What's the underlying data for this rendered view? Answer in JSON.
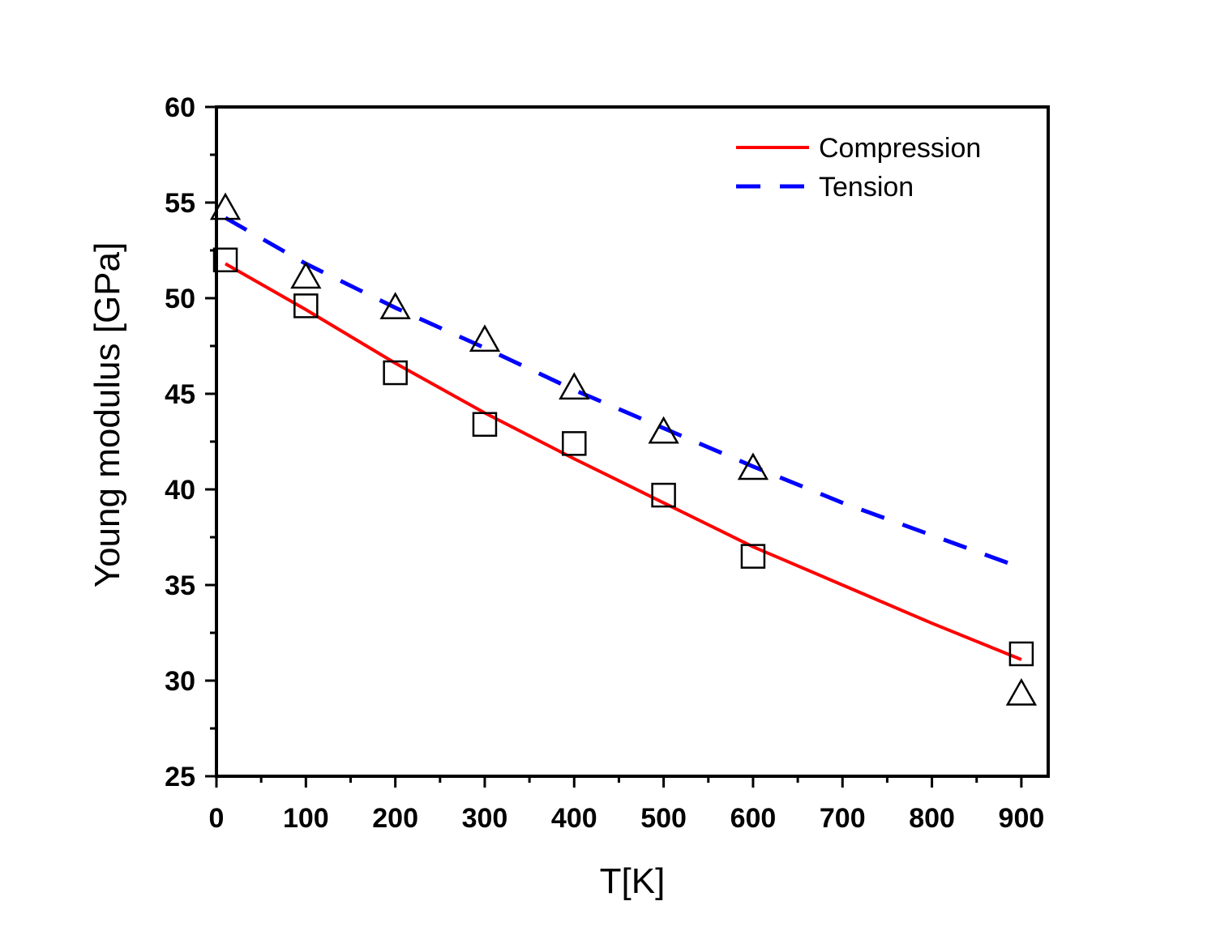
{
  "chart_data": {
    "type": "line",
    "title": "",
    "xlabel": "T[K]",
    "ylabel": "Young modulus [GPa]",
    "xlim": [
      0,
      930
    ],
    "ylim": [
      25,
      60
    ],
    "x_ticks": [
      0,
      100,
      200,
      300,
      400,
      500,
      600,
      700,
      800,
      900
    ],
    "y_ticks": [
      25,
      30,
      35,
      40,
      45,
      50,
      55,
      60
    ],
    "grid": false,
    "legend_position": "top-right",
    "series": [
      {
        "name": "Compression",
        "style": "solid",
        "color": "#ff0000",
        "x": [
          10,
          100,
          200,
          300,
          400,
          500,
          600,
          700,
          800,
          900
        ],
        "y": [
          51.8,
          49.4,
          46.6,
          44.0,
          41.6,
          39.3,
          37.0,
          35.0,
          33.0,
          31.1
        ]
      },
      {
        "name": "Tension",
        "style": "dashed",
        "color": "#0000ff",
        "x": [
          10,
          100,
          200,
          300,
          400,
          500,
          600,
          700,
          800,
          900
        ],
        "y": [
          54.2,
          51.8,
          49.5,
          47.4,
          45.2,
          43.2,
          41.2,
          39.3,
          37.6,
          35.9
        ]
      }
    ],
    "markers": [
      {
        "shape": "square",
        "x": [
          10,
          100,
          200,
          300,
          400,
          500,
          600,
          900
        ],
        "y": [
          52.0,
          49.6,
          46.1,
          43.4,
          42.4,
          39.7,
          36.5,
          31.4
        ]
      },
      {
        "shape": "triangle",
        "x": [
          10,
          100,
          200,
          300,
          400,
          500,
          600,
          900
        ],
        "y": [
          54.7,
          51.1,
          49.5,
          47.8,
          45.3,
          43.0,
          41.1,
          29.3
        ]
      }
    ]
  }
}
